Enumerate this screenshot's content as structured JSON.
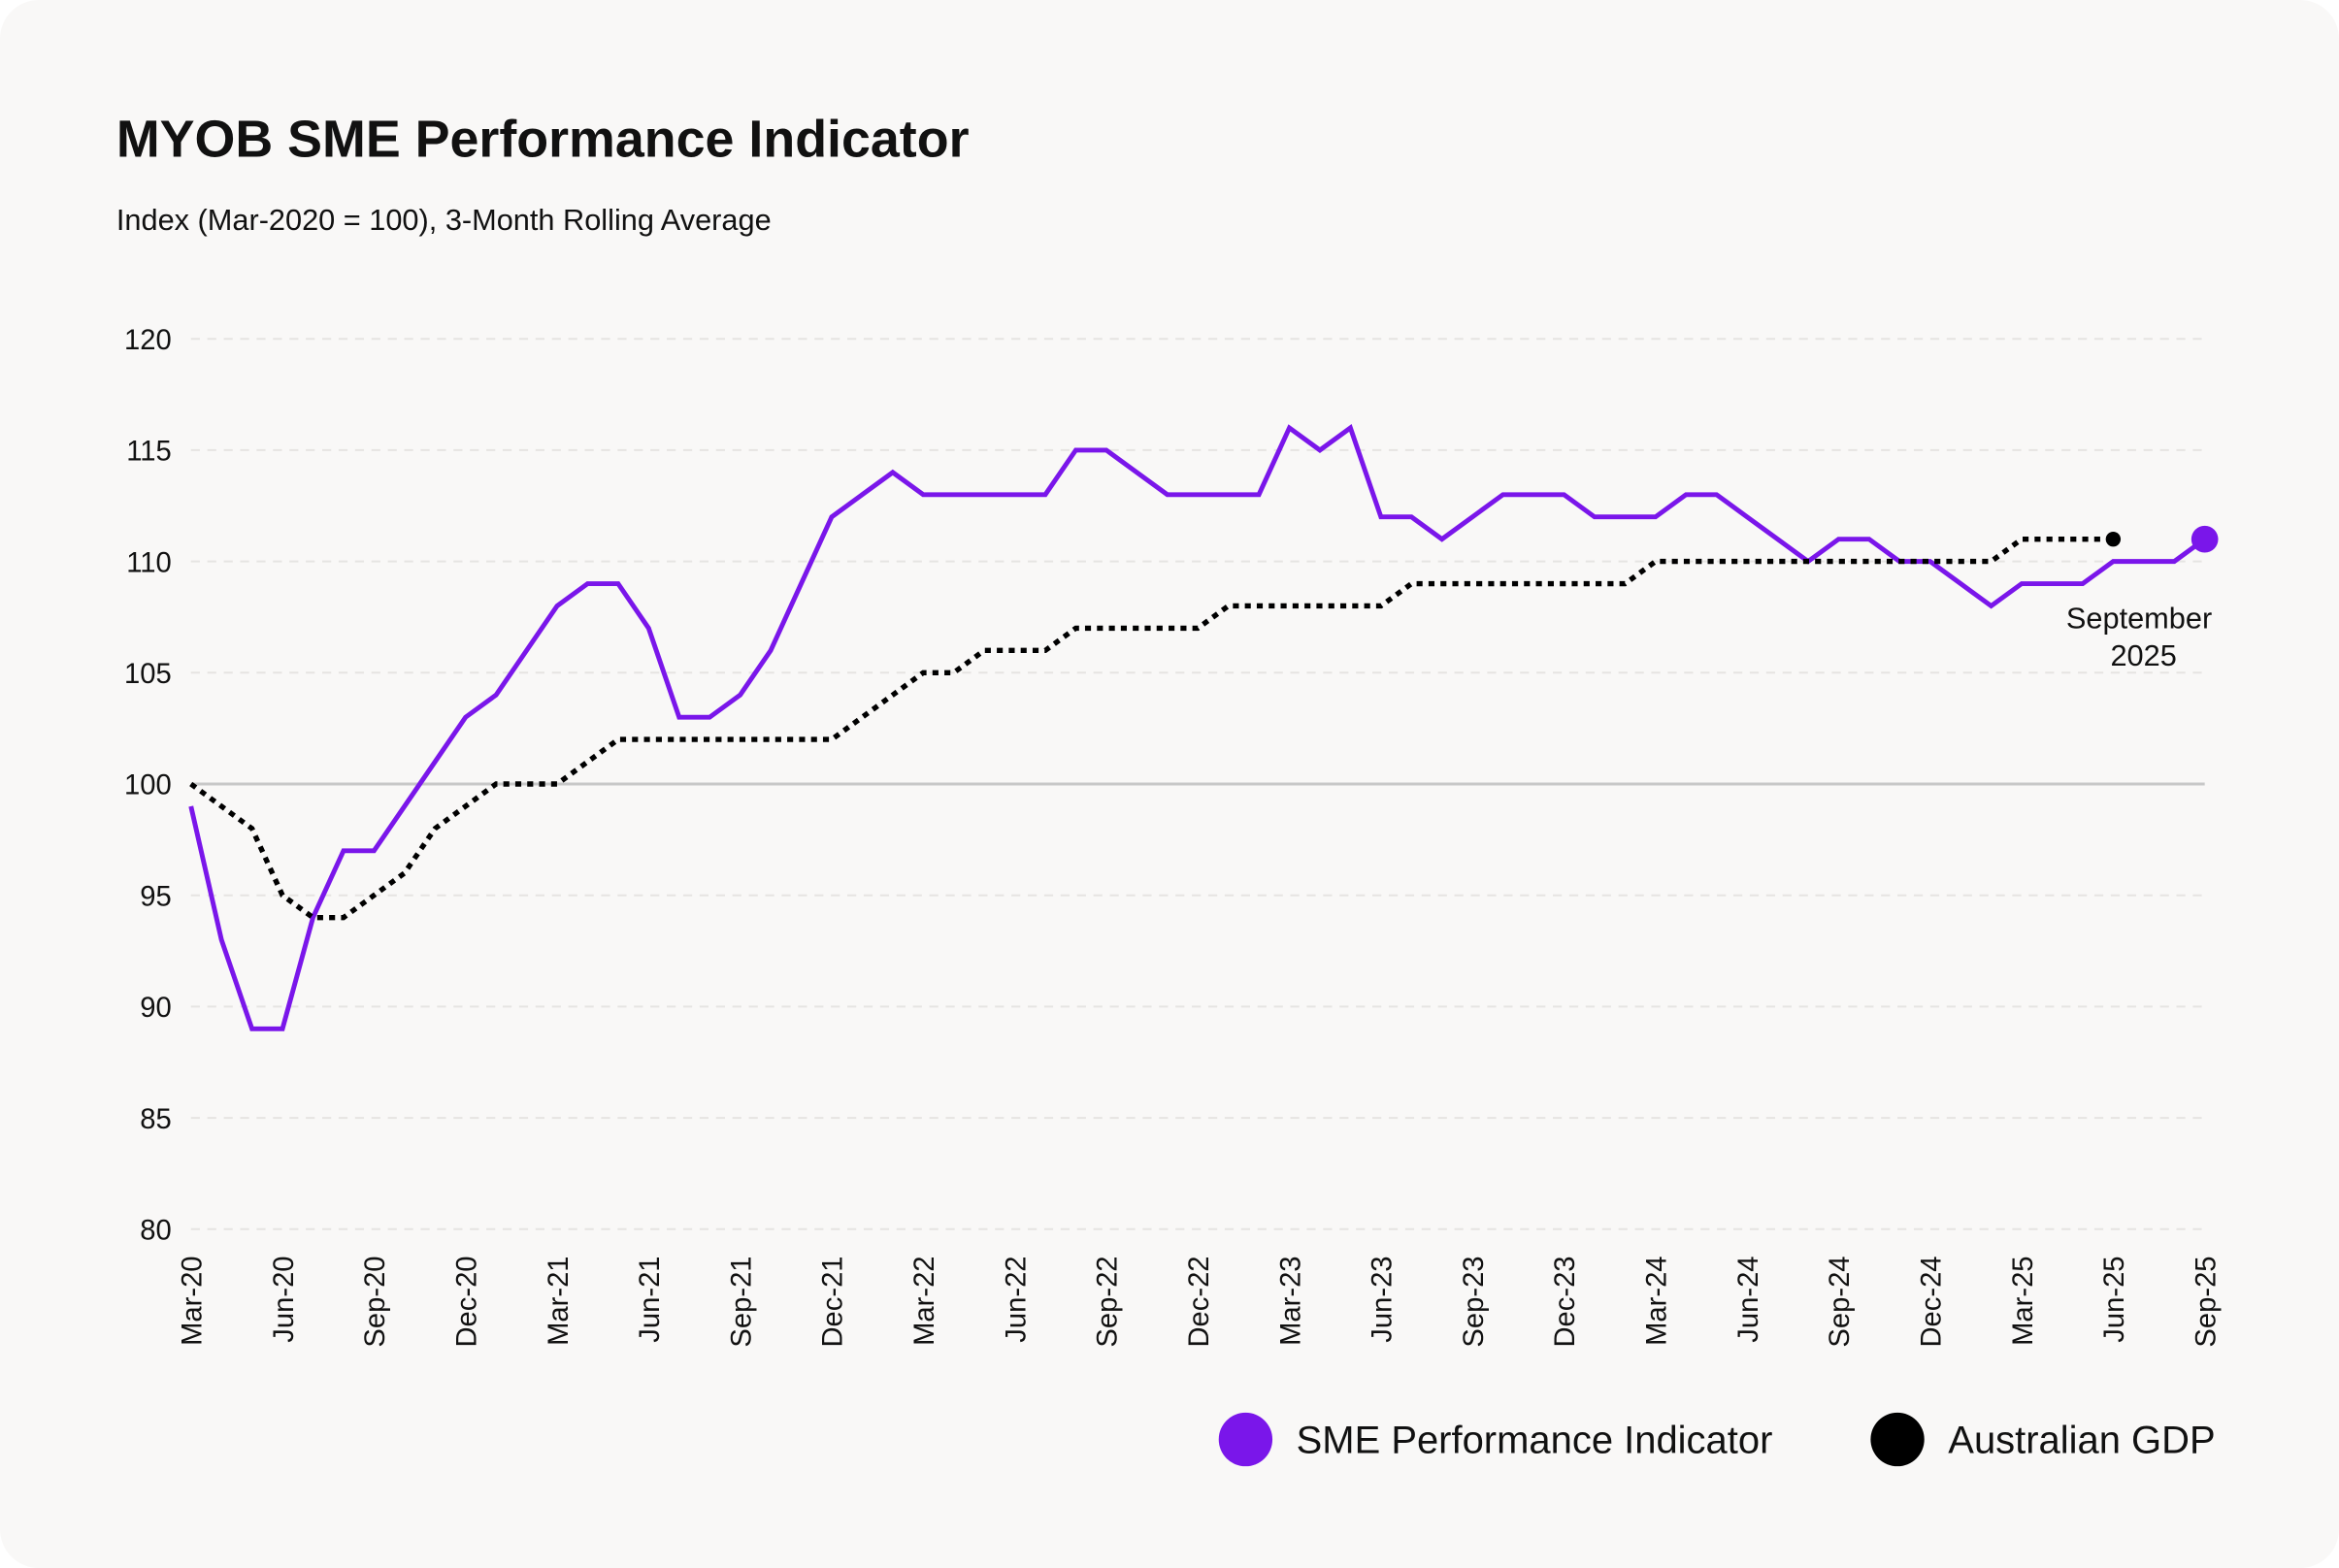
{
  "chart_data": {
    "type": "line",
    "title": "MYOB SME Performance Indicator",
    "subtitle": "Index (Mar-2020 = 100), 3-Month Rolling Average",
    "xlabel": "",
    "ylabel": "",
    "ylim": [
      80,
      120
    ],
    "yticks": [
      80,
      85,
      90,
      95,
      100,
      105,
      110,
      115,
      120
    ],
    "xtick_labels": [
      "Mar-20",
      "Jun-20",
      "Sep-20",
      "Dec-20",
      "Mar-21",
      "Jun-21",
      "Sep-21",
      "Dec-21",
      "Mar-22",
      "Jun-22",
      "Sep-22",
      "Dec-22",
      "Mar-23",
      "Jun-23",
      "Sep-23",
      "Dec-23",
      "Mar-24",
      "Jun-24",
      "Sep-24",
      "Dec-24",
      "Mar-25",
      "Jun-25",
      "Sep-25"
    ],
    "x": [
      "Mar-20",
      "Apr-20",
      "May-20",
      "Jun-20",
      "Jul-20",
      "Aug-20",
      "Sep-20",
      "Oct-20",
      "Nov-20",
      "Dec-20",
      "Jan-21",
      "Feb-21",
      "Mar-21",
      "Apr-21",
      "May-21",
      "Jun-21",
      "Jul-21",
      "Aug-21",
      "Sep-21",
      "Oct-21",
      "Nov-21",
      "Dec-21",
      "Jan-22",
      "Feb-22",
      "Mar-22",
      "Apr-22",
      "May-22",
      "Jun-22",
      "Jul-22",
      "Aug-22",
      "Sep-22",
      "Oct-22",
      "Nov-22",
      "Dec-22",
      "Jan-23",
      "Feb-23",
      "Mar-23",
      "Apr-23",
      "May-23",
      "Jun-23",
      "Jul-23",
      "Aug-23",
      "Sep-23",
      "Oct-23",
      "Nov-23",
      "Dec-23",
      "Jan-24",
      "Feb-24",
      "Mar-24",
      "Apr-24",
      "May-24",
      "Jun-24",
      "Jul-24",
      "Aug-24",
      "Sep-24",
      "Oct-24",
      "Nov-24",
      "Dec-24",
      "Jan-25",
      "Feb-25",
      "Mar-25",
      "Apr-25",
      "May-25",
      "Jun-25",
      "Jul-25",
      "Aug-25",
      "Sep-25"
    ],
    "series": [
      {
        "name": "SME Performance Indicator",
        "color": "#7a16ea",
        "style": "solid",
        "values": [
          99,
          93,
          89,
          89,
          94,
          97,
          97,
          99,
          101,
          103,
          104,
          106,
          108,
          109,
          109,
          107,
          103,
          103,
          104,
          106,
          109,
          112,
          113,
          114,
          113,
          113,
          113,
          113,
          113,
          115,
          115,
          114,
          113,
          113,
          113,
          113,
          116,
          115,
          116,
          112,
          112,
          111,
          112,
          113,
          113,
          113,
          112,
          112,
          112,
          113,
          113,
          112,
          111,
          110,
          111,
          111,
          110,
          110,
          109,
          108,
          109,
          109,
          109,
          110,
          110,
          110,
          111
        ]
      },
      {
        "name": "Australian GDP",
        "color": "#000000",
        "style": "dotted",
        "values": [
          100,
          99,
          98,
          95,
          94,
          94,
          95,
          96,
          98,
          99,
          100,
          100,
          100,
          101,
          102,
          102,
          102,
          102,
          102,
          102,
          102,
          102,
          103,
          104,
          105,
          105,
          106,
          106,
          106,
          107,
          107,
          107,
          107,
          107,
          108,
          108,
          108,
          108,
          108,
          108,
          109,
          109,
          109,
          109,
          109,
          109,
          109,
          109,
          110,
          110,
          110,
          110,
          110,
          110,
          110,
          110,
          110,
          110,
          110,
          110,
          111,
          111,
          111,
          111,
          null,
          null,
          null
        ]
      }
    ],
    "reference_line": 100,
    "annotation": [
      "September",
      "2025"
    ],
    "grid": "horizontal dashed",
    "legend_placement": "bottom-right"
  }
}
